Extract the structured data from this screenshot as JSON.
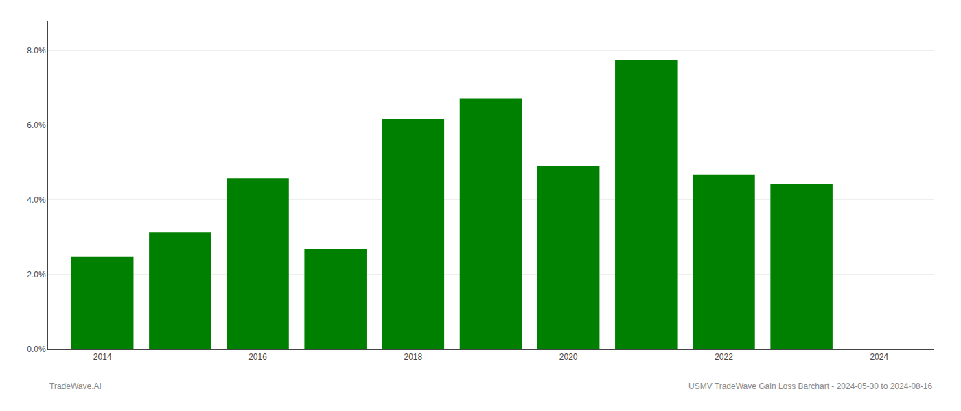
{
  "chart_data": {
    "type": "bar",
    "x": [
      2014,
      2015,
      2016,
      2017,
      2018,
      2019,
      2020,
      2021,
      2022,
      2023
    ],
    "values": [
      0.0248,
      0.0313,
      0.0458,
      0.0268,
      0.0618,
      0.0672,
      0.049,
      0.0775,
      0.0468,
      0.0442
    ],
    "color": "#008000",
    "xlim": [
      2013.3,
      2024.7
    ],
    "xticks": [
      2014,
      2016,
      2018,
      2020,
      2022,
      2024
    ],
    "ylim": [
      0,
      0.088
    ],
    "yticks": [
      {
        "value": 0.0,
        "label": "0.0%"
      },
      {
        "value": 0.02,
        "label": "2.0%"
      },
      {
        "value": 0.04,
        "label": "4.0%"
      },
      {
        "value": 0.06,
        "label": "6.0%"
      },
      {
        "value": 0.08,
        "label": "8.0%"
      }
    ],
    "grid": "y",
    "annotations": [
      "TradeWave.AI",
      "USMV TradeWave Gain Loss Barchart - 2024-05-30 to 2024-08-16"
    ]
  }
}
